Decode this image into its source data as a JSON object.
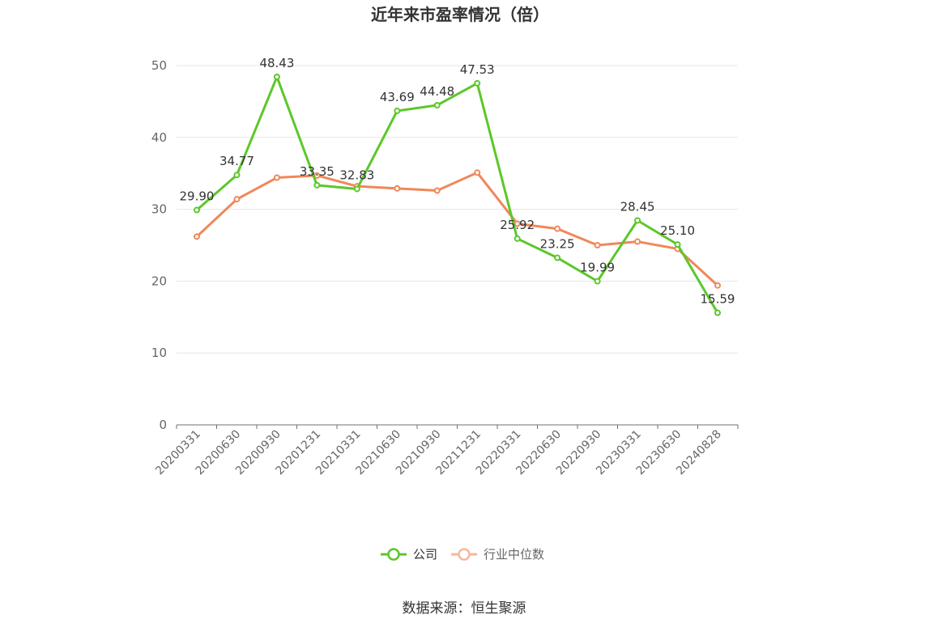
{
  "chart_data": {
    "type": "line",
    "title": "近年来市盈率情况（倍）",
    "categories": [
      "20200331",
      "20200630",
      "20200930",
      "20201231",
      "20210331",
      "20210630",
      "20210930",
      "20211231",
      "20220331",
      "20220630",
      "20220930",
      "20230331",
      "20230630",
      "20240828"
    ],
    "series": [
      {
        "name": "公司",
        "color": "#5cc72a",
        "values": [
          29.9,
          34.77,
          48.43,
          33.35,
          32.83,
          43.69,
          44.48,
          47.53,
          25.92,
          23.25,
          19.99,
          28.45,
          25.1,
          15.59
        ],
        "labels": [
          "29.90",
          "34.77",
          "48.43",
          "33.35",
          "32.83",
          "43.69",
          "44.48",
          "47.53",
          "25.92",
          "23.25",
          "19.99",
          "28.45",
          "25.10",
          "15.59"
        ]
      },
      {
        "name": "行业中位数",
        "color": "#f0875a",
        "legend_color": "#f7b79a",
        "values": [
          26.2,
          31.4,
          34.4,
          34.7,
          33.2,
          32.9,
          32.6,
          35.1,
          28.0,
          27.3,
          25.0,
          25.5,
          24.5,
          19.4
        ]
      }
    ],
    "yticks": [
      "0",
      "10",
      "20",
      "30",
      "40",
      "50"
    ],
    "ylim": [
      0,
      50
    ],
    "grid": true,
    "legend_position": "bottom",
    "source": "数据来源：恒生聚源"
  }
}
